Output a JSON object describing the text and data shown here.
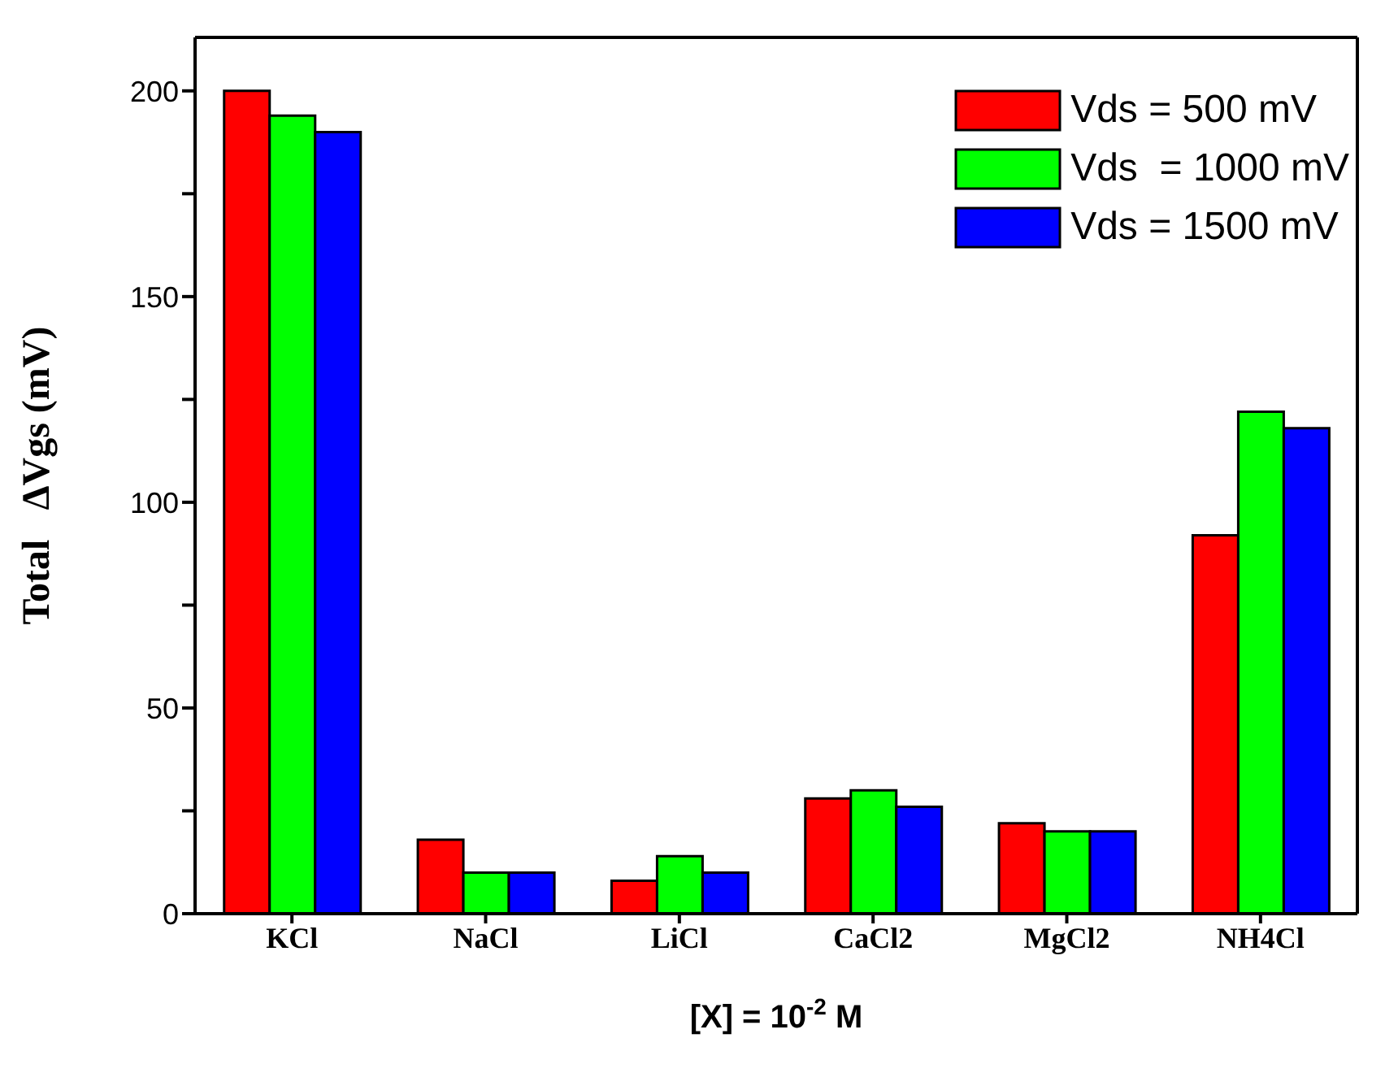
{
  "chart_data": {
    "type": "bar",
    "xlabel": "[X] = 10$^{-2}$ M",
    "ylabel": "Total   ΔVgs (mV)",
    "categories": [
      "KCl",
      "NaCl",
      "LiCl",
      "CaCl2",
      "MgCl2",
      "NH4Cl"
    ],
    "series": [
      {
        "name": "Vds = 500 mV",
        "color": "#ff0000",
        "values": [
          200,
          18,
          8,
          28,
          22,
          92
        ]
      },
      {
        "name": "Vds  = 1000 mV",
        "color": "#00ff00",
        "values": [
          194,
          10,
          14,
          30,
          20,
          122
        ]
      },
      {
        "name": "Vds = 1500 mV",
        "color": "#0000ff",
        "values": [
          190,
          10,
          10,
          26,
          20,
          118
        ]
      }
    ],
    "ylim": [
      0,
      213
    ],
    "yticks": [
      0,
      {
        "value": 25,
        "label": null
      },
      50,
      {
        "value": 75,
        "label": null
      },
      100,
      {
        "value": 125,
        "label": null
      },
      150,
      {
        "value": 175,
        "label": null
      },
      200
    ],
    "grid": false,
    "legend": "top right"
  }
}
